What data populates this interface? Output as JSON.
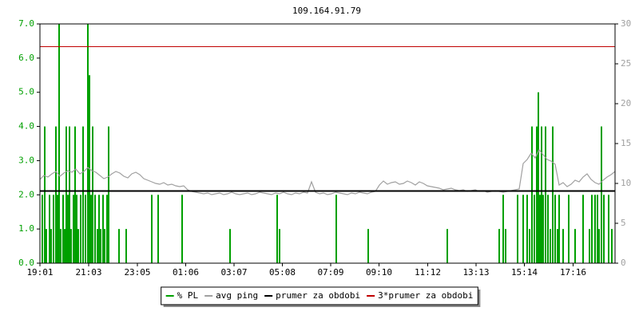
{
  "chart_data": {
    "type": "line",
    "title": "109.164.91.79",
    "xlim": [
      0,
      1440
    ],
    "xticks": [
      {
        "value": 0,
        "label": "19:01"
      },
      {
        "value": 122,
        "label": "21:03"
      },
      {
        "value": 244,
        "label": "23:05"
      },
      {
        "value": 365,
        "label": "01:06"
      },
      {
        "value": 486,
        "label": "03:07"
      },
      {
        "value": 607,
        "label": "05:08"
      },
      {
        "value": 728,
        "label": "07:09"
      },
      {
        "value": 849,
        "label": "09:10"
      },
      {
        "value": 971,
        "label": "11:12"
      },
      {
        "value": 1092,
        "label": "13:13"
      },
      {
        "value": 1213,
        "label": "15:14"
      },
      {
        "value": 1335,
        "label": "17:16"
      }
    ],
    "ylim": [
      0,
      7
    ],
    "yticks": [
      {
        "value": 0,
        "label": "0.0"
      },
      {
        "value": 1,
        "label": "1.0"
      },
      {
        "value": 2,
        "label": "2.0"
      },
      {
        "value": 3,
        "label": "3.0"
      },
      {
        "value": 4,
        "label": "4.0"
      },
      {
        "value": 5,
        "label": "5.0"
      },
      {
        "value": 6,
        "label": "6.0"
      },
      {
        "value": 7,
        "label": "7.0"
      }
    ],
    "y2lim": [
      0,
      30
    ],
    "y2ticks": [
      0,
      5,
      10,
      15,
      20,
      25,
      30
    ],
    "grid": false,
    "legend": "bottom",
    "series": [
      {
        "name": "% PL",
        "type": "bar",
        "color": "#00a000",
        "x": [
          6,
          12,
          16,
          24,
          28,
          34,
          40,
          44,
          48,
          52,
          58,
          62,
          66,
          70,
          74,
          78,
          84,
          88,
          92,
          96,
          102,
          108,
          114,
          120,
          124,
          128,
          132,
          138,
          144,
          148,
          152,
          158,
          162,
          168,
          172,
          198,
          216,
          280,
          296,
          356,
          476,
          594,
          600,
          742,
          822,
          1020,
          1150,
          1160,
          1166,
          1196,
          1210,
          1220,
          1226,
          1232,
          1238,
          1244,
          1248,
          1252,
          1256,
          1260,
          1266,
          1272,
          1278,
          1284,
          1290,
          1296,
          1300,
          1310,
          1324,
          1340,
          1360,
          1376,
          1382,
          1390,
          1396,
          1400,
          1406,
          1412,
          1424,
          1432
        ],
        "values": [
          2,
          4,
          1,
          2,
          1,
          2,
          4,
          2,
          7,
          1,
          2,
          1,
          4,
          2,
          4,
          1,
          2,
          4,
          2,
          1,
          2,
          4,
          2,
          7,
          5.5,
          2,
          4,
          2,
          1,
          2,
          1,
          2,
          1,
          2,
          4,
          1,
          1,
          2,
          2,
          2,
          1,
          2,
          1,
          2,
          1,
          1,
          1,
          2,
          1,
          2,
          2,
          2,
          1,
          4,
          2,
          4,
          5,
          2,
          4,
          2,
          4,
          2,
          1,
          4,
          2,
          1,
          2,
          1,
          2,
          1,
          2,
          1,
          2,
          2,
          2,
          1,
          4,
          2,
          2,
          1
        ]
      },
      {
        "name": "avg ping",
        "type": "line",
        "axis": "y2",
        "color": "#a0a0a0",
        "x": [
          0,
          10,
          20,
          30,
          40,
          50,
          60,
          70,
          80,
          90,
          100,
          110,
          120,
          130,
          140,
          150,
          160,
          170,
          180,
          190,
          200,
          210,
          220,
          230,
          240,
          250,
          260,
          270,
          280,
          290,
          300,
          310,
          320,
          330,
          340,
          350,
          360,
          370,
          380,
          390,
          400,
          410,
          420,
          430,
          440,
          450,
          460,
          470,
          480,
          490,
          500,
          510,
          520,
          530,
          540,
          550,
          560,
          570,
          580,
          590,
          600,
          610,
          620,
          630,
          640,
          650,
          660,
          670,
          680,
          690,
          700,
          710,
          720,
          730,
          740,
          750,
          760,
          770,
          780,
          790,
          800,
          810,
          820,
          830,
          840,
          850,
          860,
          870,
          880,
          890,
          900,
          910,
          920,
          930,
          940,
          950,
          960,
          970,
          980,
          990,
          1000,
          1010,
          1020,
          1030,
          1040,
          1050,
          1060,
          1070,
          1080,
          1090,
          1100,
          1110,
          1120,
          1130,
          1140,
          1150,
          1160,
          1170,
          1180,
          1190,
          1200,
          1210,
          1220,
          1230,
          1240,
          1250,
          1260,
          1270,
          1280,
          1290,
          1300,
          1310,
          1320,
          1330,
          1340,
          1350,
          1360,
          1370,
          1380,
          1390,
          1400,
          1410,
          1420,
          1430,
          1440
        ],
        "values": [
          10.5,
          11,
          10.8,
          11.2,
          11.5,
          10.9,
          11.3,
          11.6,
          11.4,
          11.8,
          11.2,
          11.5,
          12,
          11.6,
          11.4,
          11,
          10.6,
          10.8,
          11.2,
          11.5,
          11.3,
          10.9,
          10.7,
          11.2,
          11.4,
          11.1,
          10.6,
          10.4,
          10.2,
          10.0,
          9.9,
          10.1,
          9.8,
          9.9,
          9.7,
          9.6,
          9.7,
          9.2,
          9.0,
          8.9,
          8.8,
          8.7,
          8.8,
          8.6,
          8.7,
          8.8,
          8.6,
          8.7,
          8.9,
          8.7,
          8.6,
          8.7,
          8.8,
          8.6,
          8.7,
          8.9,
          8.8,
          8.7,
          8.6,
          8.8,
          8.7,
          8.9,
          8.7,
          8.6,
          8.8,
          8.7,
          8.9,
          8.8,
          10.2,
          8.9,
          8.7,
          8.8,
          8.6,
          8.7,
          8.9,
          8.8,
          8.7,
          8.6,
          8.8,
          8.7,
          8.9,
          8.8,
          8.7,
          8.9,
          9.0,
          9.8,
          10.3,
          9.9,
          10.1,
          10.2,
          9.9,
          10.0,
          10.3,
          10.1,
          9.8,
          10.2,
          10.0,
          9.7,
          9.6,
          9.5,
          9.4,
          9.2,
          9.3,
          9.4,
          9.2,
          9.1,
          9.2,
          9.0,
          9.1,
          9.2,
          9.0,
          9.1,
          8.9,
          9.0,
          9.1,
          9.0,
          8.9,
          9.0,
          9.1,
          9.2,
          9.3,
          12.5,
          13.0,
          13.8,
          13.2,
          14.2,
          13.6,
          13.0,
          12.8,
          12.4,
          9.8,
          10.1,
          9.6,
          9.9,
          10.4,
          10.2,
          10.8,
          11.2,
          10.5,
          10.1,
          9.9,
          10.4,
          10.8,
          11.1,
          11.5
        ]
      },
      {
        "name": "prumer za obdobi",
        "type": "hline",
        "axis": "y2",
        "color": "#000000",
        "value": 9.05
      },
      {
        "name": "3*prumer za obdobi",
        "type": "hline",
        "axis": "y2",
        "color": "#c00000",
        "value": 27.15
      }
    ]
  }
}
